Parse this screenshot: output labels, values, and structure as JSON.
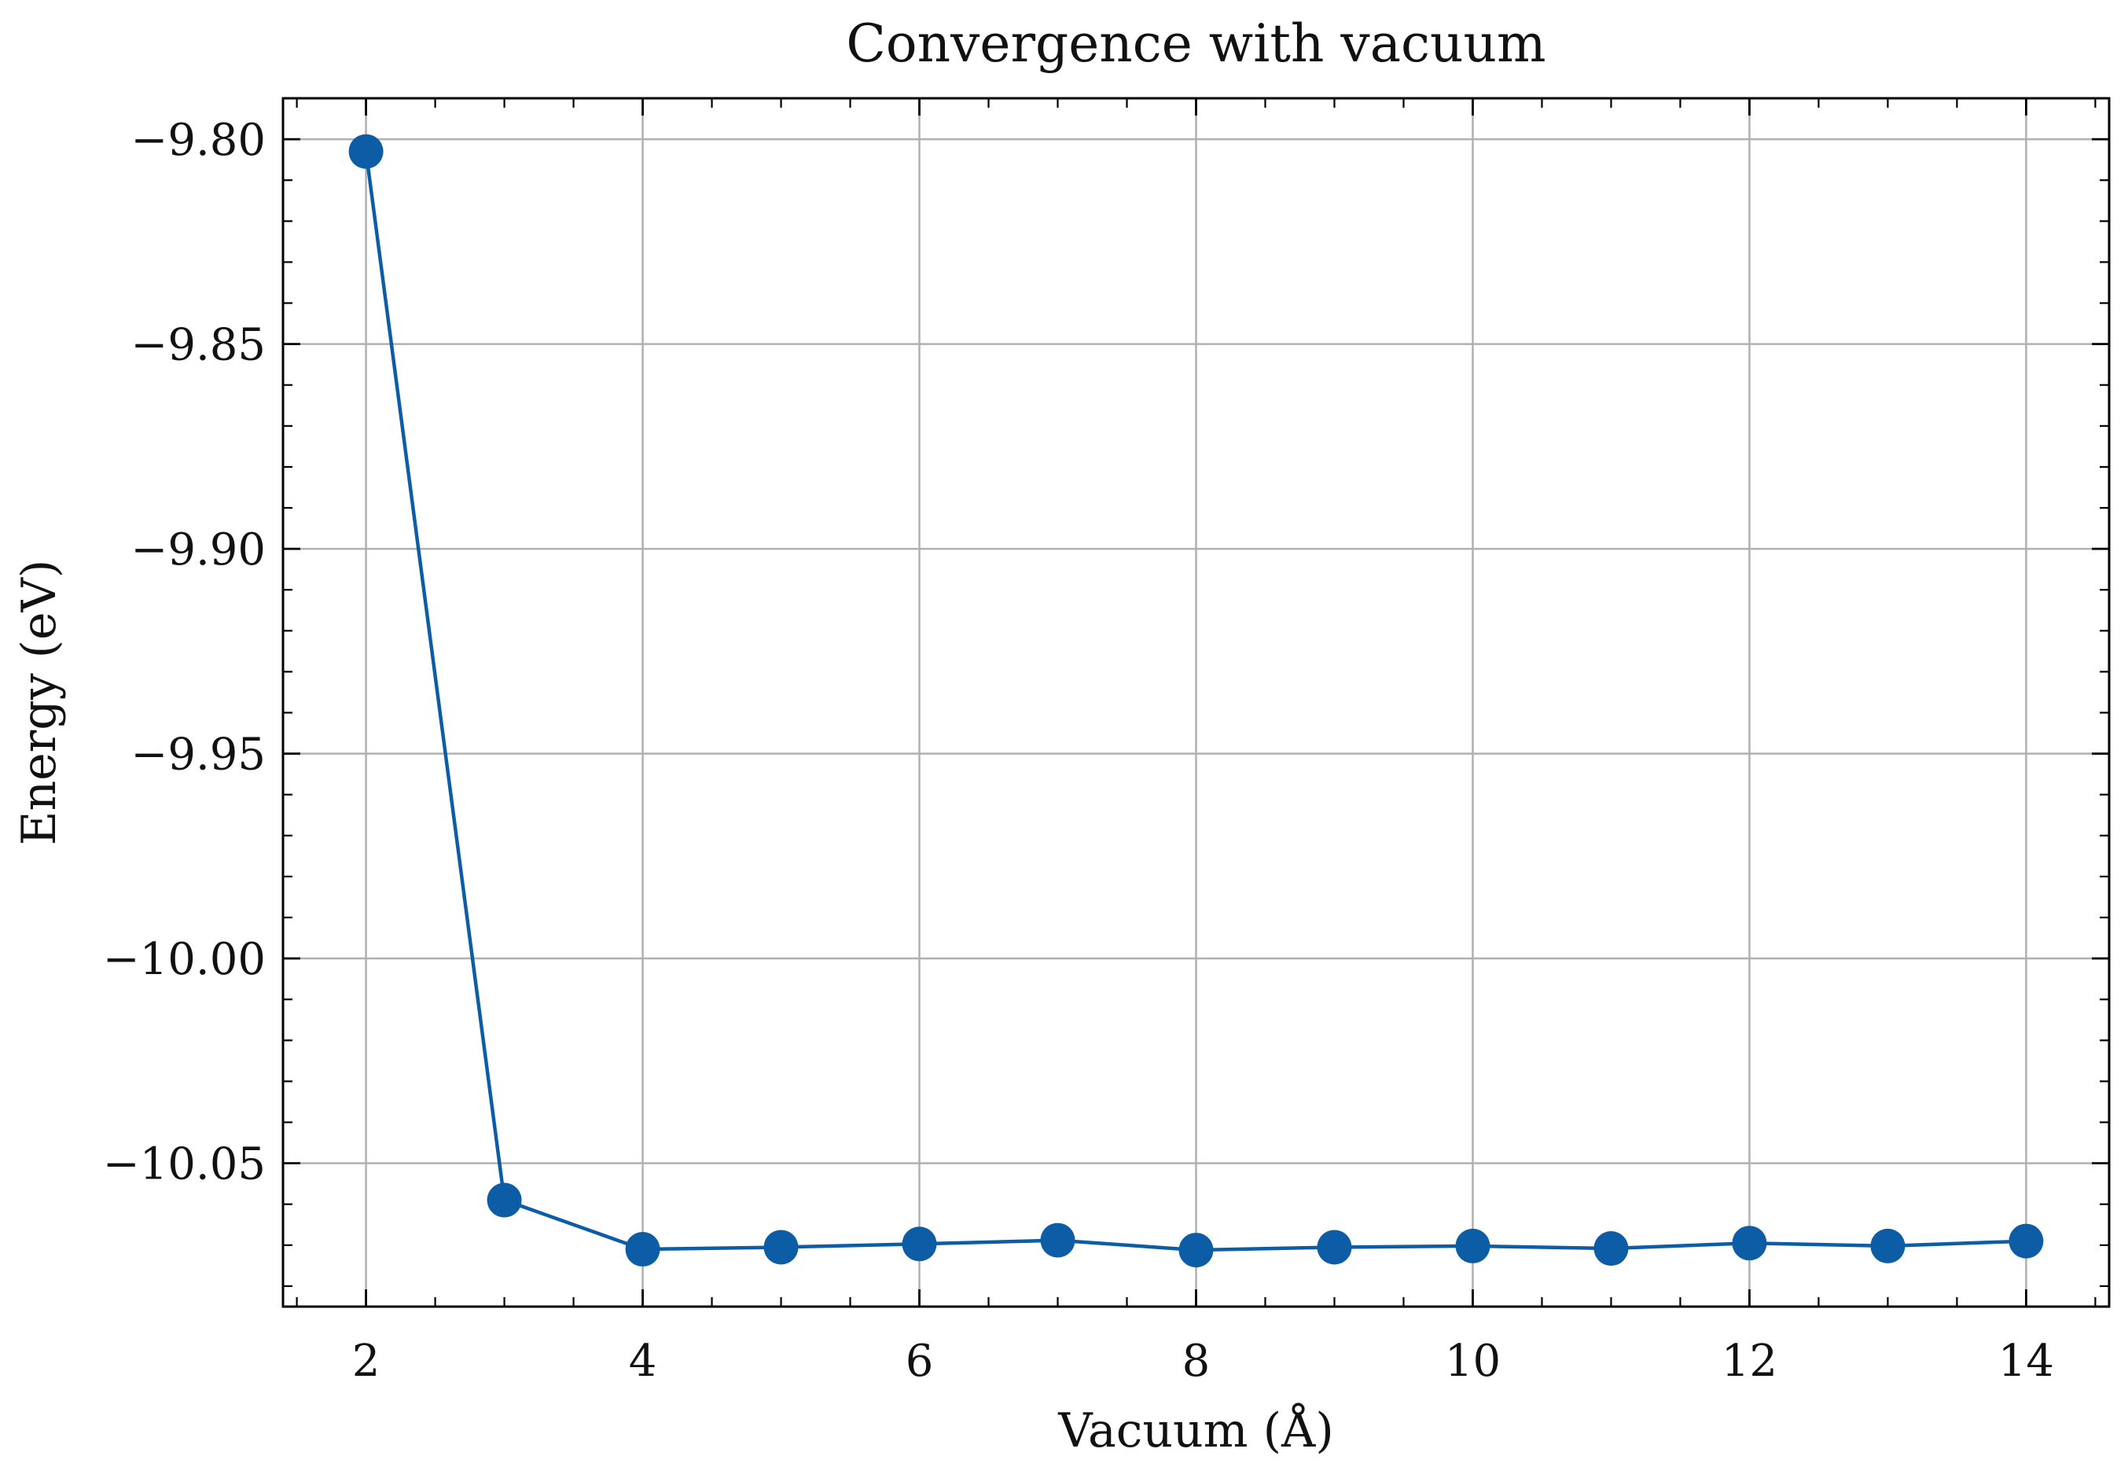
{
  "chart_data": {
    "type": "line",
    "title": "Convergence with vacuum",
    "xlabel": "Vacuum (Å)",
    "ylabel": "Energy (eV)",
    "xlim": [
      1.4,
      14.6
    ],
    "ylim": [
      -10.085,
      -9.79
    ],
    "xticks": [
      2,
      4,
      6,
      8,
      10,
      12,
      14
    ],
    "xtick_labels": [
      "2",
      "4",
      "6",
      "8",
      "10",
      "12",
      "14"
    ],
    "xticks_minor": [
      1.5,
      2.5,
      3,
      3.5,
      4.5,
      5,
      5.5,
      6.5,
      7,
      7.5,
      8.5,
      9,
      9.5,
      10.5,
      11,
      11.5,
      12.5,
      13,
      13.5,
      14.5
    ],
    "yticks": [
      -9.8,
      -9.85,
      -9.9,
      -9.95,
      -10.0,
      -10.05
    ],
    "ytick_labels": [
      "−9.80",
      "−9.85",
      "−9.90",
      "−9.95",
      "−10.00",
      "−10.05"
    ],
    "yticks_minor": [
      -9.79,
      -9.81,
      -9.82,
      -9.83,
      -9.84,
      -9.86,
      -9.87,
      -9.88,
      -9.89,
      -9.91,
      -9.92,
      -9.93,
      -9.94,
      -9.96,
      -9.97,
      -9.98,
      -9.99,
      -10.01,
      -10.02,
      -10.03,
      -10.04,
      -10.06,
      -10.07,
      -10.08
    ],
    "grid": true,
    "series": [
      {
        "x": [
          2,
          3,
          4,
          5,
          6,
          7,
          8,
          9,
          10,
          11,
          12,
          13,
          14
        ],
        "y": [
          -9.803,
          -10.059,
          -10.071,
          -10.0705,
          -10.0697,
          -10.0688,
          -10.0712,
          -10.0705,
          -10.0702,
          -10.0708,
          -10.0695,
          -10.0702,
          -10.069
        ],
        "color": "#0C5DA5",
        "marker": "circle"
      }
    ]
  }
}
